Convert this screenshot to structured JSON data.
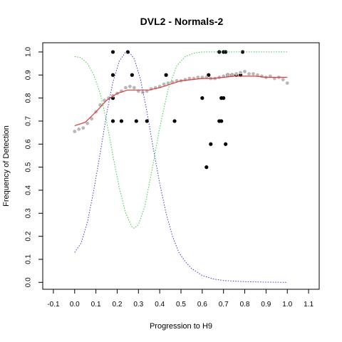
{
  "chart_data": {
    "type": "scatter",
    "title": "DVL2 - Normals-2",
    "xlabel": "Progression to H9",
    "ylabel": "Frequency of Detection",
    "xlim": [
      -0.15,
      1.15
    ],
    "ylim": [
      -0.03,
      1.04
    ],
    "x_ticks": [
      "-0.1",
      "0.0",
      "0.1",
      "0.2",
      "0.3",
      "0.4",
      "0.5",
      "0.6",
      "0.7",
      "0.8",
      "0.9",
      "1.0",
      "1.1"
    ],
    "y_ticks": [
      "0.0",
      "0.1",
      "0.2",
      "0.3",
      "0.4",
      "0.5",
      "0.6",
      "0.7",
      "0.8",
      "0.9",
      "1.0"
    ],
    "grid": false,
    "legend": "none",
    "colors": {
      "black_points": "#000000",
      "gray_points": "#b8b8b8",
      "red_fit": "#e0383a",
      "green_curve": "#32d232",
      "blue_curve": "#3c3cd2"
    },
    "series": [
      {
        "kind": "points",
        "color": "black_points",
        "points": [
          [
            0.18,
            1.0
          ],
          [
            0.25,
            1.0
          ],
          [
            0.68,
            1.0
          ],
          [
            0.7,
            1.0
          ],
          [
            0.71,
            1.0
          ],
          [
            0.79,
            1.0
          ],
          [
            0.18,
            0.9
          ],
          [
            0.27,
            0.9
          ],
          [
            0.43,
            0.9
          ],
          [
            0.63,
            0.9
          ],
          [
            0.72,
            0.9
          ],
          [
            0.74,
            0.9
          ],
          [
            0.76,
            0.9
          ],
          [
            0.78,
            0.9
          ],
          [
            0.18,
            0.8
          ],
          [
            0.6,
            0.8
          ],
          [
            0.69,
            0.8
          ],
          [
            0.7,
            0.8
          ],
          [
            0.18,
            0.7
          ],
          [
            0.22,
            0.7
          ],
          [
            0.29,
            0.7
          ],
          [
            0.34,
            0.7
          ],
          [
            0.47,
            0.7
          ],
          [
            0.68,
            0.7
          ],
          [
            0.69,
            0.7
          ],
          [
            0.64,
            0.6
          ],
          [
            0.71,
            0.6
          ],
          [
            0.62,
            0.5
          ]
        ]
      },
      {
        "kind": "points",
        "color": "gray_points",
        "points": [
          [
            0.0,
            0.655
          ],
          [
            0.02,
            0.665
          ],
          [
            0.04,
            0.67
          ],
          [
            0.06,
            0.69
          ],
          [
            0.08,
            0.71
          ],
          [
            0.1,
            0.74
          ],
          [
            0.12,
            0.77
          ],
          [
            0.14,
            0.79
          ],
          [
            0.16,
            0.8
          ],
          [
            0.18,
            0.81
          ],
          [
            0.2,
            0.82
          ],
          [
            0.22,
            0.83
          ],
          [
            0.24,
            0.845
          ],
          [
            0.26,
            0.85
          ],
          [
            0.28,
            0.845
          ],
          [
            0.3,
            0.83
          ],
          [
            0.32,
            0.825
          ],
          [
            0.34,
            0.83
          ],
          [
            0.36,
            0.84
          ],
          [
            0.38,
            0.845
          ],
          [
            0.4,
            0.85
          ],
          [
            0.42,
            0.86
          ],
          [
            0.44,
            0.865
          ],
          [
            0.46,
            0.87
          ],
          [
            0.48,
            0.875
          ],
          [
            0.5,
            0.875
          ],
          [
            0.52,
            0.88
          ],
          [
            0.54,
            0.885
          ],
          [
            0.56,
            0.885
          ],
          [
            0.58,
            0.89
          ],
          [
            0.6,
            0.89
          ],
          [
            0.62,
            0.89
          ],
          [
            0.64,
            0.885
          ],
          [
            0.66,
            0.885
          ],
          [
            0.68,
            0.89
          ],
          [
            0.7,
            0.895
          ],
          [
            0.72,
            0.9
          ],
          [
            0.74,
            0.9
          ],
          [
            0.76,
            0.905
          ],
          [
            0.78,
            0.91
          ],
          [
            0.8,
            0.915
          ],
          [
            0.82,
            0.905
          ],
          [
            0.84,
            0.905
          ],
          [
            0.86,
            0.9
          ],
          [
            0.88,
            0.895
          ],
          [
            0.9,
            0.89
          ],
          [
            0.92,
            0.895
          ],
          [
            0.94,
            0.885
          ],
          [
            0.96,
            0.89
          ],
          [
            0.98,
            0.88
          ],
          [
            1.0,
            0.865
          ]
        ]
      },
      {
        "kind": "line",
        "style": "solid",
        "color": "red_fit",
        "points": [
          [
            0.0,
            0.68
          ],
          [
            0.05,
            0.695
          ],
          [
            0.1,
            0.74
          ],
          [
            0.15,
            0.79
          ],
          [
            0.2,
            0.82
          ],
          [
            0.25,
            0.835
          ],
          [
            0.3,
            0.835
          ],
          [
            0.35,
            0.835
          ],
          [
            0.4,
            0.845
          ],
          [
            0.45,
            0.86
          ],
          [
            0.5,
            0.875
          ],
          [
            0.55,
            0.88
          ],
          [
            0.6,
            0.885
          ],
          [
            0.65,
            0.885
          ],
          [
            0.7,
            0.89
          ],
          [
            0.75,
            0.895
          ],
          [
            0.8,
            0.895
          ],
          [
            0.85,
            0.895
          ],
          [
            0.9,
            0.89
          ],
          [
            0.95,
            0.89
          ],
          [
            1.0,
            0.89
          ]
        ]
      },
      {
        "kind": "line",
        "style": "dotted",
        "color": "green_curve",
        "points": [
          [
            0.0,
            0.98
          ],
          [
            0.03,
            0.975
          ],
          [
            0.06,
            0.95
          ],
          [
            0.09,
            0.9
          ],
          [
            0.12,
            0.82
          ],
          [
            0.15,
            0.7
          ],
          [
            0.18,
            0.55
          ],
          [
            0.21,
            0.41
          ],
          [
            0.24,
            0.3
          ],
          [
            0.27,
            0.24
          ],
          [
            0.28,
            0.235
          ],
          [
            0.3,
            0.25
          ],
          [
            0.33,
            0.33
          ],
          [
            0.36,
            0.47
          ],
          [
            0.4,
            0.67
          ],
          [
            0.44,
            0.84
          ],
          [
            0.48,
            0.94
          ],
          [
            0.52,
            0.98
          ],
          [
            0.56,
            0.995
          ],
          [
            0.6,
            1.0
          ],
          [
            0.7,
            1.0
          ],
          [
            0.8,
            1.0
          ],
          [
            0.9,
            1.0
          ],
          [
            1.0,
            1.0
          ]
        ]
      },
      {
        "kind": "line",
        "style": "dotted",
        "color": "blue_curve",
        "points": [
          [
            0.0,
            0.13
          ],
          [
            0.03,
            0.17
          ],
          [
            0.06,
            0.26
          ],
          [
            0.09,
            0.4
          ],
          [
            0.12,
            0.56
          ],
          [
            0.15,
            0.73
          ],
          [
            0.18,
            0.87
          ],
          [
            0.21,
            0.96
          ],
          [
            0.24,
            1.0
          ],
          [
            0.26,
            0.995
          ],
          [
            0.28,
            0.97
          ],
          [
            0.31,
            0.88
          ],
          [
            0.34,
            0.74
          ],
          [
            0.37,
            0.58
          ],
          [
            0.4,
            0.43
          ],
          [
            0.43,
            0.3
          ],
          [
            0.46,
            0.2
          ],
          [
            0.49,
            0.13
          ],
          [
            0.52,
            0.09
          ],
          [
            0.55,
            0.06
          ],
          [
            0.6,
            0.03
          ],
          [
            0.65,
            0.015
          ],
          [
            0.7,
            0.008
          ],
          [
            0.8,
            0.003
          ],
          [
            0.9,
            0.001
          ],
          [
            1.0,
            0.0
          ]
        ]
      }
    ]
  }
}
